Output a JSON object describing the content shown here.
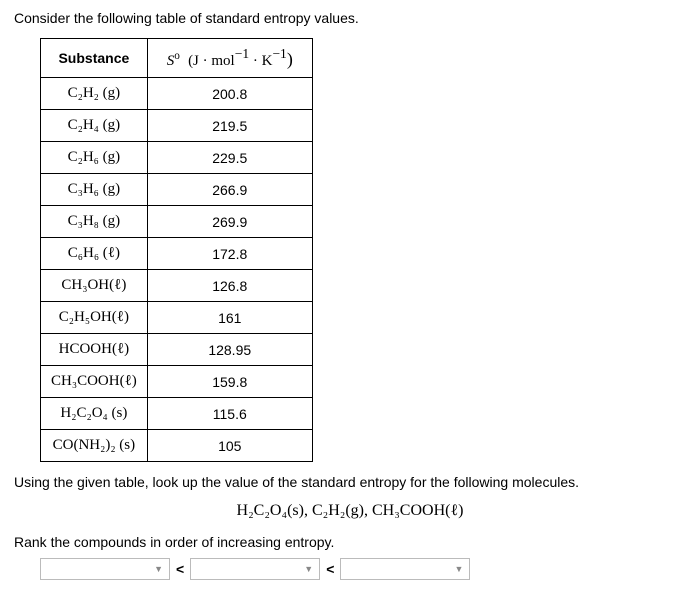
{
  "intro": "Consider the following table of standard entropy values.",
  "table": {
    "headers": {
      "col1_label": "Substance",
      "col2_symbol": "S",
      "col2_sup1": "o",
      "col2_units_pre": "(J · mol",
      "col2_exp1": "−1",
      "col2_mid": " · K",
      "col2_exp2": "−1",
      "col2_close": ")"
    },
    "rows": [
      {
        "f": "C₂H₂ (g)",
        "v": "200.8"
      },
      {
        "f": "C₂H₄ (g)",
        "v": "219.5"
      },
      {
        "f": "C₂H₆ (g)",
        "v": "229.5"
      },
      {
        "f": "C₃H₆ (g)",
        "v": "266.9"
      },
      {
        "f": "C₃H₈ (g)",
        "v": "269.9"
      },
      {
        "f": "C₆H₆ (ℓ)",
        "v": "172.8"
      },
      {
        "f": "CH₃OH(ℓ)",
        "v": "126.8"
      },
      {
        "f": "C₂H₅OH(ℓ)",
        "v": "161"
      },
      {
        "f": "HCOOH(ℓ)",
        "v": "128.95"
      },
      {
        "f": "CH₃COOH(ℓ)",
        "v": "159.8"
      },
      {
        "f": "H₂C₂O₄ (s)",
        "v": "115.6"
      },
      {
        "f": "CO(NH₂)₂ (s)",
        "v": "105"
      }
    ]
  },
  "instr2": "Using the given table, look up the value of the standard entropy for the following molecules.",
  "molecules": "H₂C₂O₄(s),  C₂H₂(g),  CH₃COOH(ℓ)",
  "rank_text": "Rank the compounds in order of increasing entropy.",
  "lt": "<"
}
